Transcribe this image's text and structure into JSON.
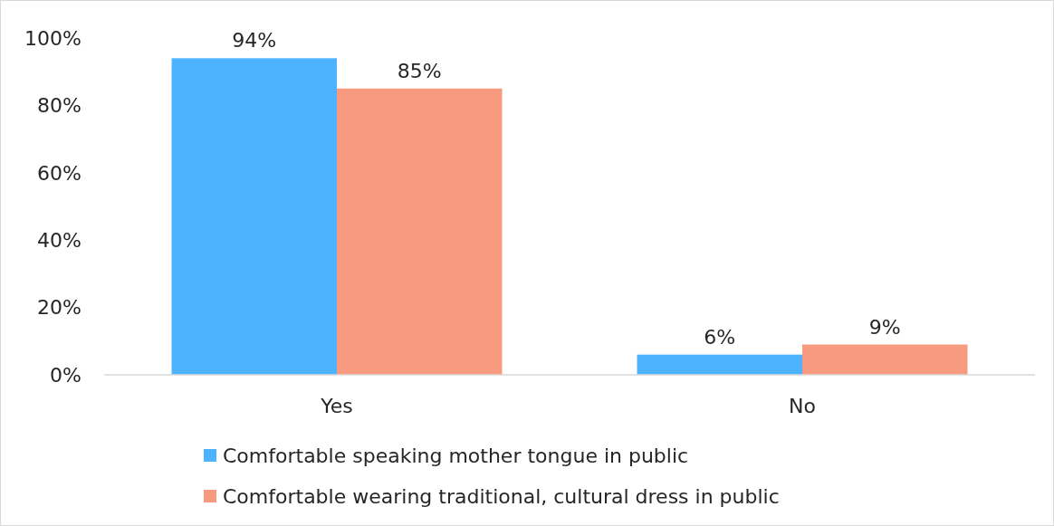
{
  "chart_data": {
    "type": "bar",
    "categories": [
      "Yes",
      "No"
    ],
    "series": [
      {
        "name": "Comfortable speaking mother tongue in public",
        "color": "#4db3ff",
        "values": [
          94,
          6
        ],
        "value_labels": [
          "94%",
          "6%"
        ]
      },
      {
        "name": "Comfortable wearing traditional, cultural dress in public",
        "color": "#f79a80",
        "values": [
          85,
          9
        ],
        "value_labels": [
          "85%",
          "9%"
        ]
      }
    ],
    "ylim": [
      0,
      100
    ],
    "yticks": [
      {
        "value": 0,
        "label": "0%"
      },
      {
        "value": 20,
        "label": "20%"
      },
      {
        "value": 40,
        "label": "40%"
      },
      {
        "value": 60,
        "label": "60%"
      },
      {
        "value": 80,
        "label": "80%"
      },
      {
        "value": 100,
        "label": "100%"
      }
    ],
    "grid": false,
    "legend": "bottom"
  }
}
